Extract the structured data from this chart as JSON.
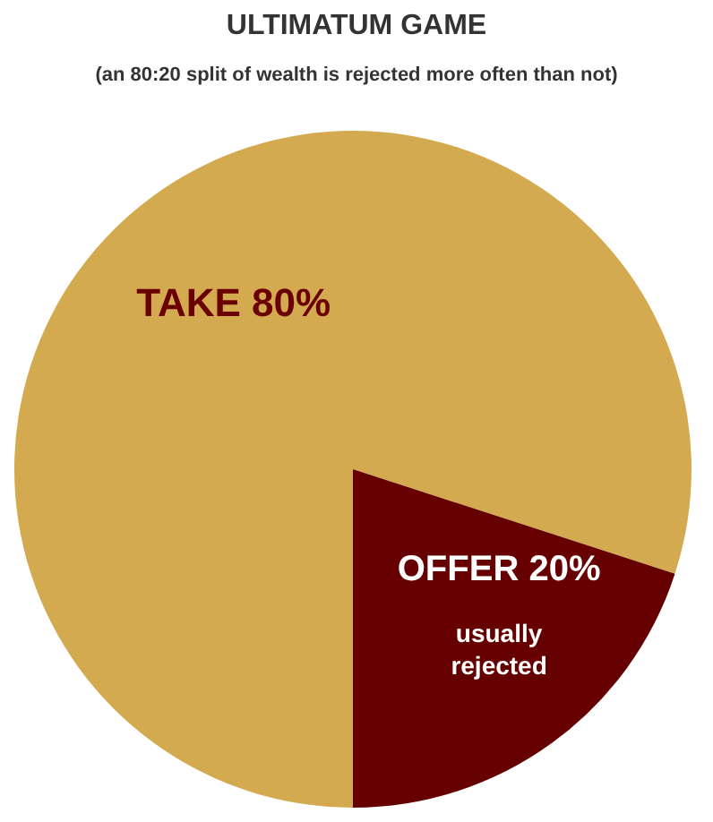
{
  "chart_data": {
    "type": "pie",
    "title": "ULTIMATUM GAME",
    "subtitle": "(an 80:20 split of wealth is rejected more often than not)",
    "categories": [
      "TAKE",
      "OFFER"
    ],
    "values": [
      80,
      20
    ],
    "value_labels": [
      "80%",
      "20%"
    ],
    "colors": [
      "#d4aa50",
      "#660000"
    ],
    "annotations": [
      "usually rejected"
    ],
    "legend": false
  }
}
